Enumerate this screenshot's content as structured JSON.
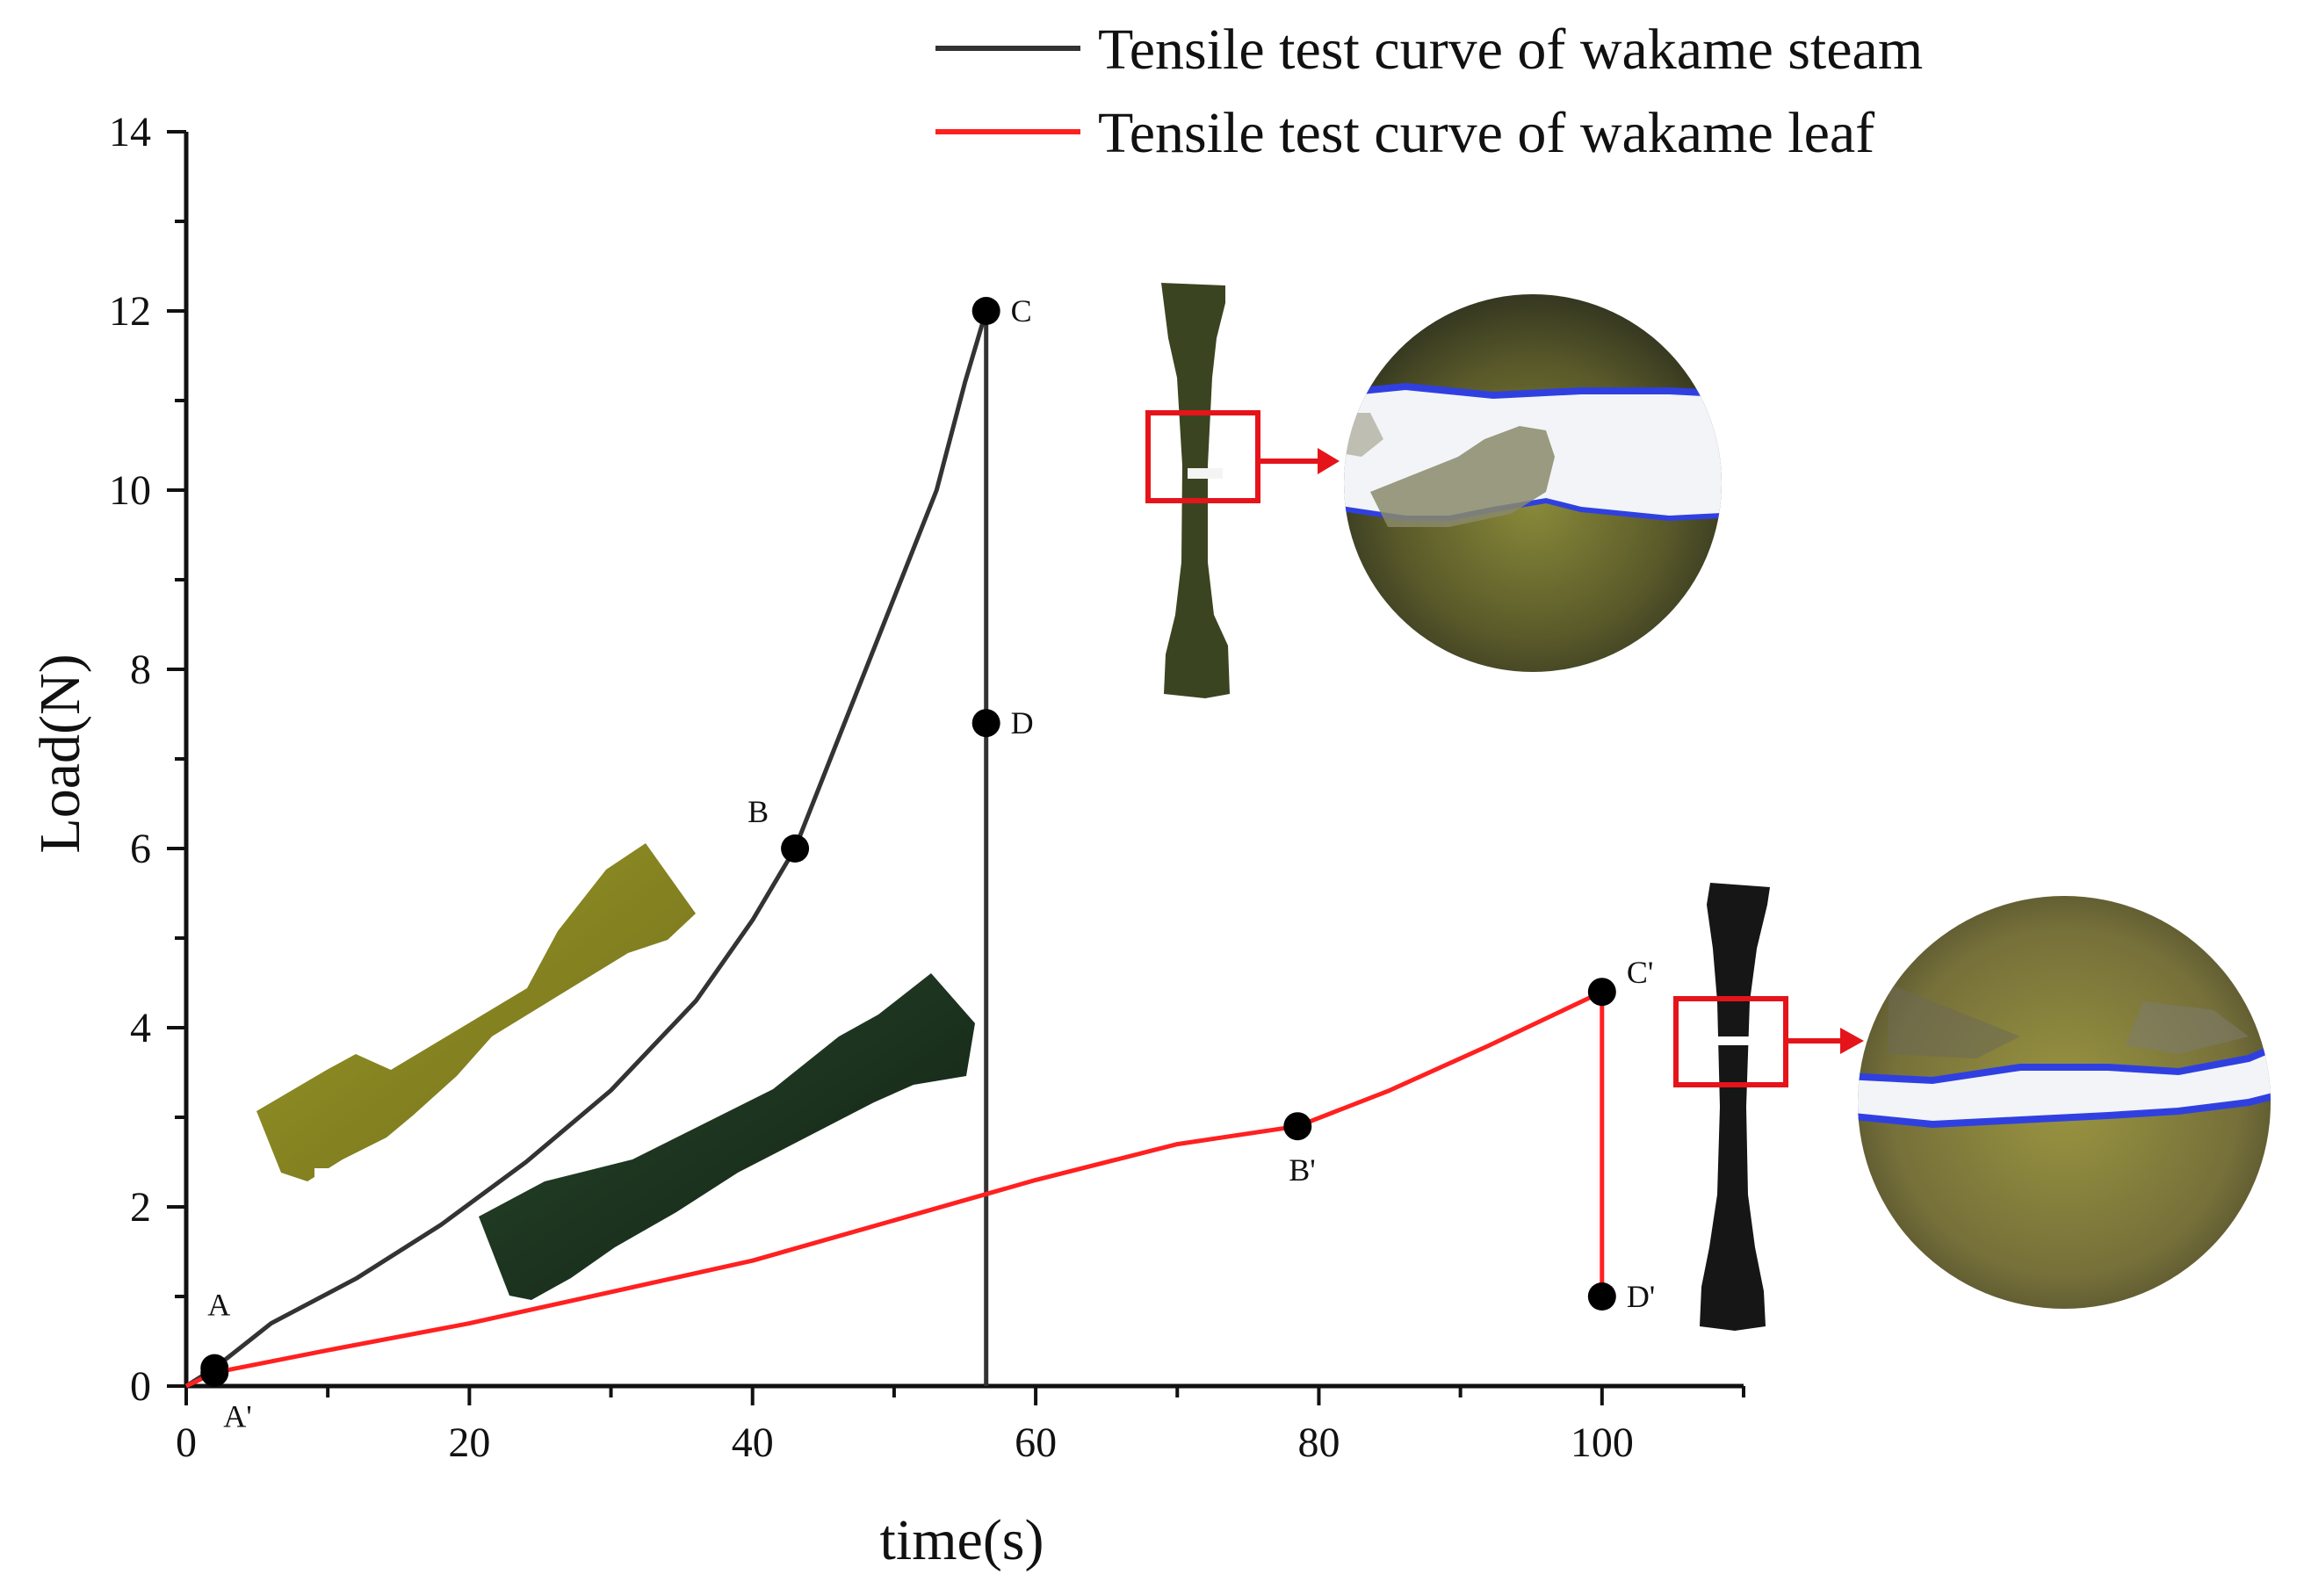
{
  "chart_data": {
    "type": "line",
    "xlabel": "time(s)",
    "ylabel": "Load(N)",
    "xlim": [
      0,
      110
    ],
    "ylim": [
      0,
      14
    ],
    "x_ticks": [
      "0",
      "20",
      "40",
      "60",
      "80",
      "100"
    ],
    "y_ticks": [
      "0",
      "2",
      "4",
      "6",
      "8",
      "10",
      "12",
      "14"
    ],
    "legend_position": "top-right",
    "grid": false,
    "series": [
      {
        "name": "Tensile test curve of wakame steam",
        "color": "#333333",
        "points": [
          [
            0,
            0
          ],
          [
            2,
            0.2
          ],
          [
            6,
            0.7
          ],
          [
            12,
            1.2
          ],
          [
            18,
            1.8
          ],
          [
            24,
            2.5
          ],
          [
            30,
            3.3
          ],
          [
            36,
            4.3
          ],
          [
            40,
            5.2
          ],
          [
            43,
            6.0
          ],
          [
            46,
            7.2
          ],
          [
            50,
            8.8
          ],
          [
            53,
            10.0
          ],
          [
            55,
            11.2
          ],
          [
            56.5,
            12.0
          ],
          [
            56.5,
            7.4
          ],
          [
            56.5,
            0
          ]
        ],
        "markers": [
          {
            "label": "A",
            "x": 2,
            "y": 0.2
          },
          {
            "label": "B",
            "x": 43,
            "y": 6.0
          },
          {
            "label": "C",
            "x": 56.5,
            "y": 12.0
          },
          {
            "label": "D",
            "x": 56.5,
            "y": 7.4
          }
        ]
      },
      {
        "name": "Tensile test curve of wakame leaf",
        "color": "#ff2020",
        "points": [
          [
            0,
            0
          ],
          [
            2,
            0.15
          ],
          [
            10,
            0.4
          ],
          [
            20,
            0.7
          ],
          [
            30,
            1.05
          ],
          [
            40,
            1.4
          ],
          [
            50,
            1.85
          ],
          [
            60,
            2.3
          ],
          [
            70,
            2.7
          ],
          [
            78.5,
            2.9
          ],
          [
            85,
            3.3
          ],
          [
            92,
            3.8
          ],
          [
            100,
            4.4
          ],
          [
            100,
            1.0
          ]
        ],
        "markers": [
          {
            "label": "A'",
            "x": 2,
            "y": 0.15
          },
          {
            "label": "B'",
            "x": 78.5,
            "y": 2.9
          },
          {
            "label": "C'",
            "x": 100,
            "y": 4.4
          },
          {
            "label": "D'",
            "x": 100,
            "y": 1.0
          }
        ]
      }
    ]
  },
  "colors": {
    "axis": "#111111",
    "highlight_box": "#e5141b",
    "steam_specimen": "#2a3215",
    "leaf_specimen": "#1a1a1a",
    "yellow_specimen": "#8c8a1e",
    "dark_specimen": "#1e3320",
    "fracture_white": "#f2f4f8",
    "fracture_edge": "#3040e0"
  }
}
